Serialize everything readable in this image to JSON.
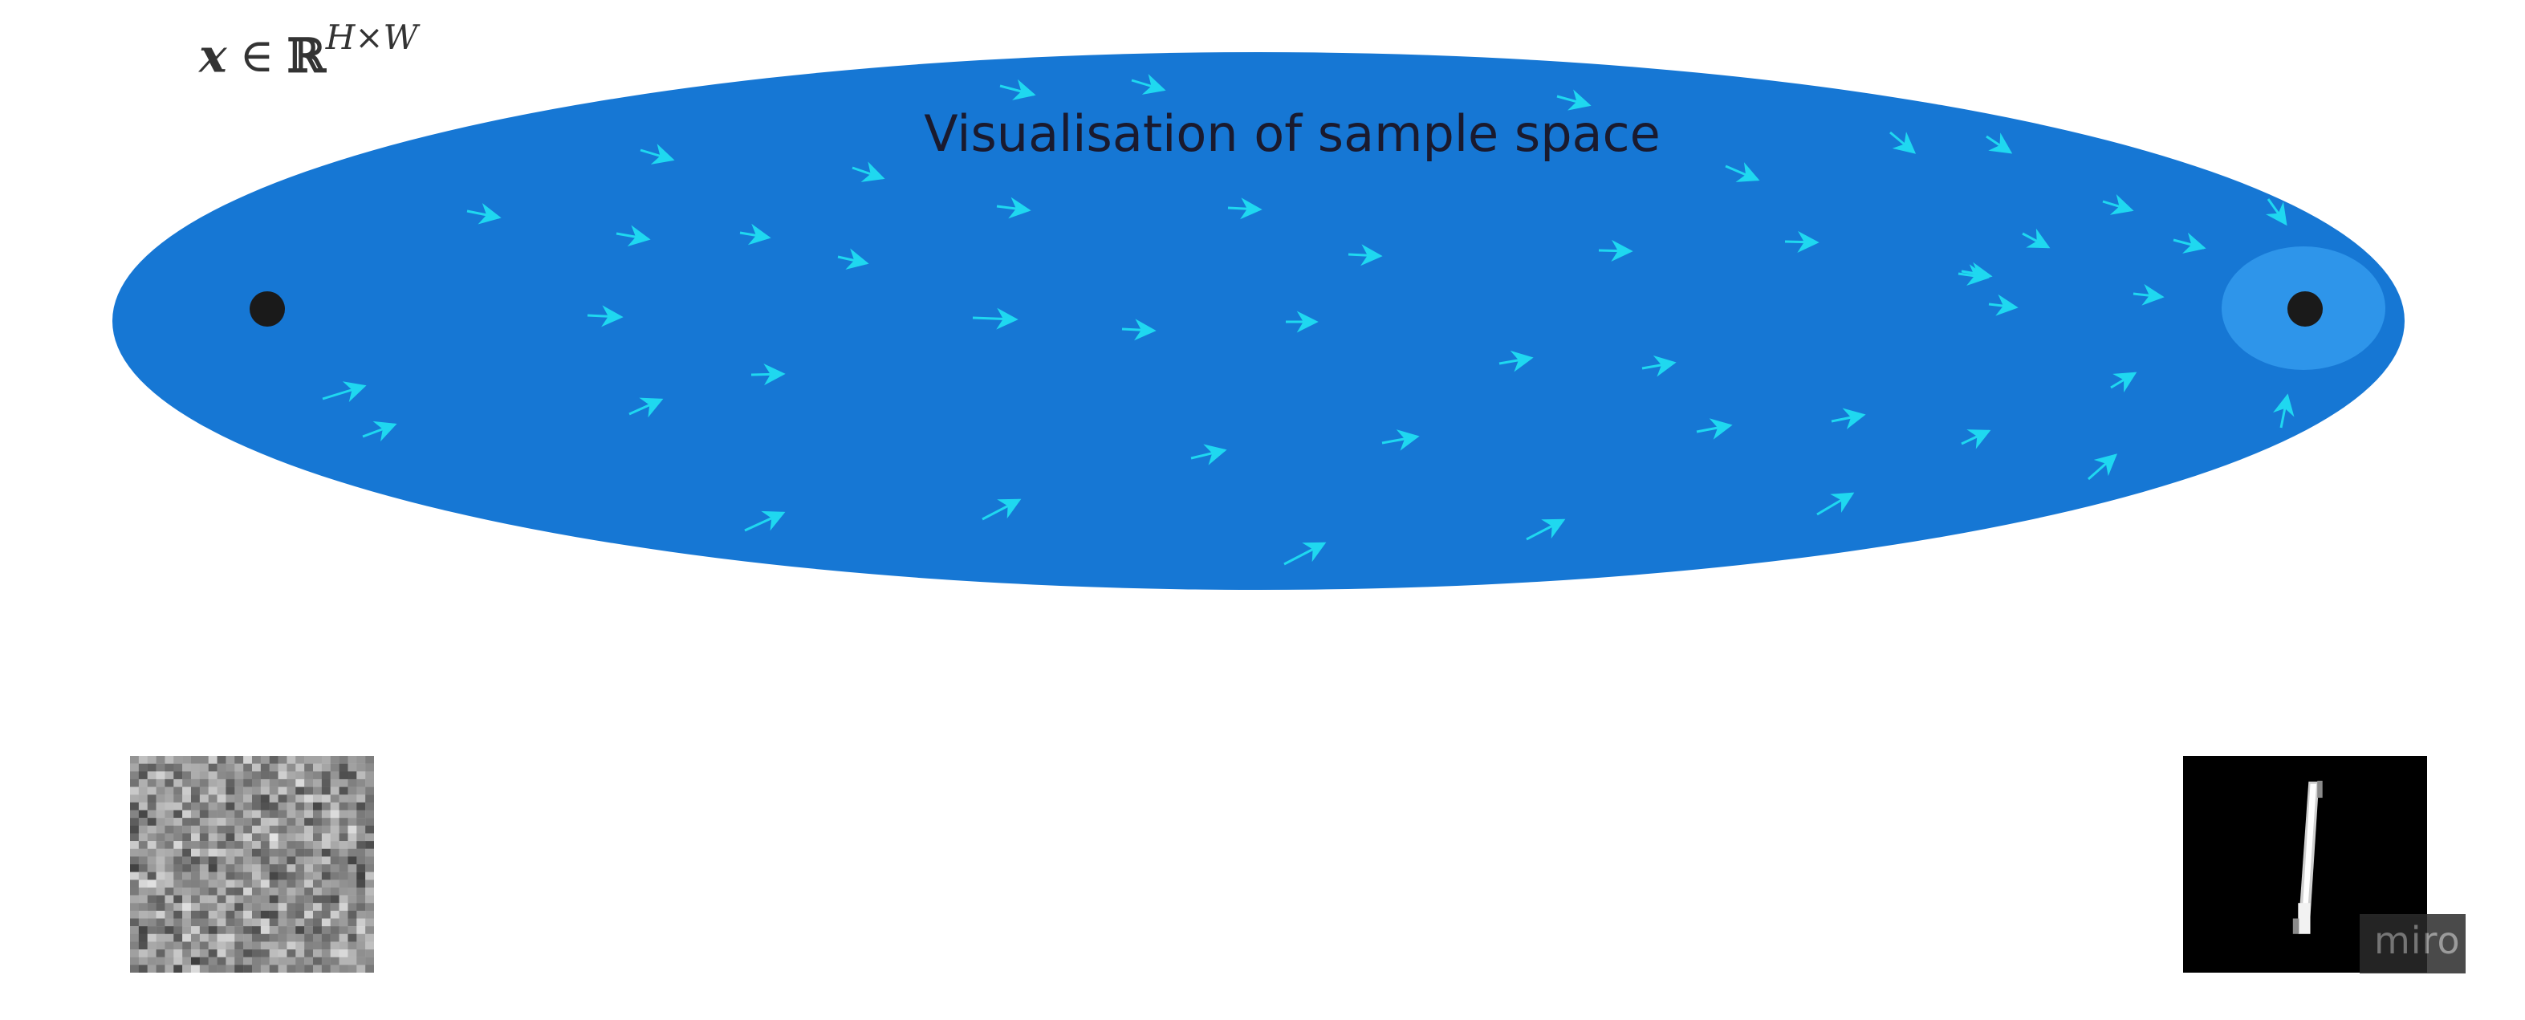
{
  "diagram": {
    "title": "Visualisation of sample space",
    "formula": {
      "variable": "x",
      "operator": "∈",
      "set": "ℝ",
      "exponent": "H×W"
    },
    "colors": {
      "ellipse": "#1677D4",
      "target_region": "#2E95EA",
      "arrows": "#1FD8F0",
      "points": "#1a1a1a"
    },
    "icons": [
      "arrow-icon",
      "noise-image",
      "digit-image"
    ]
  },
  "brand": {
    "label": "miro"
  }
}
